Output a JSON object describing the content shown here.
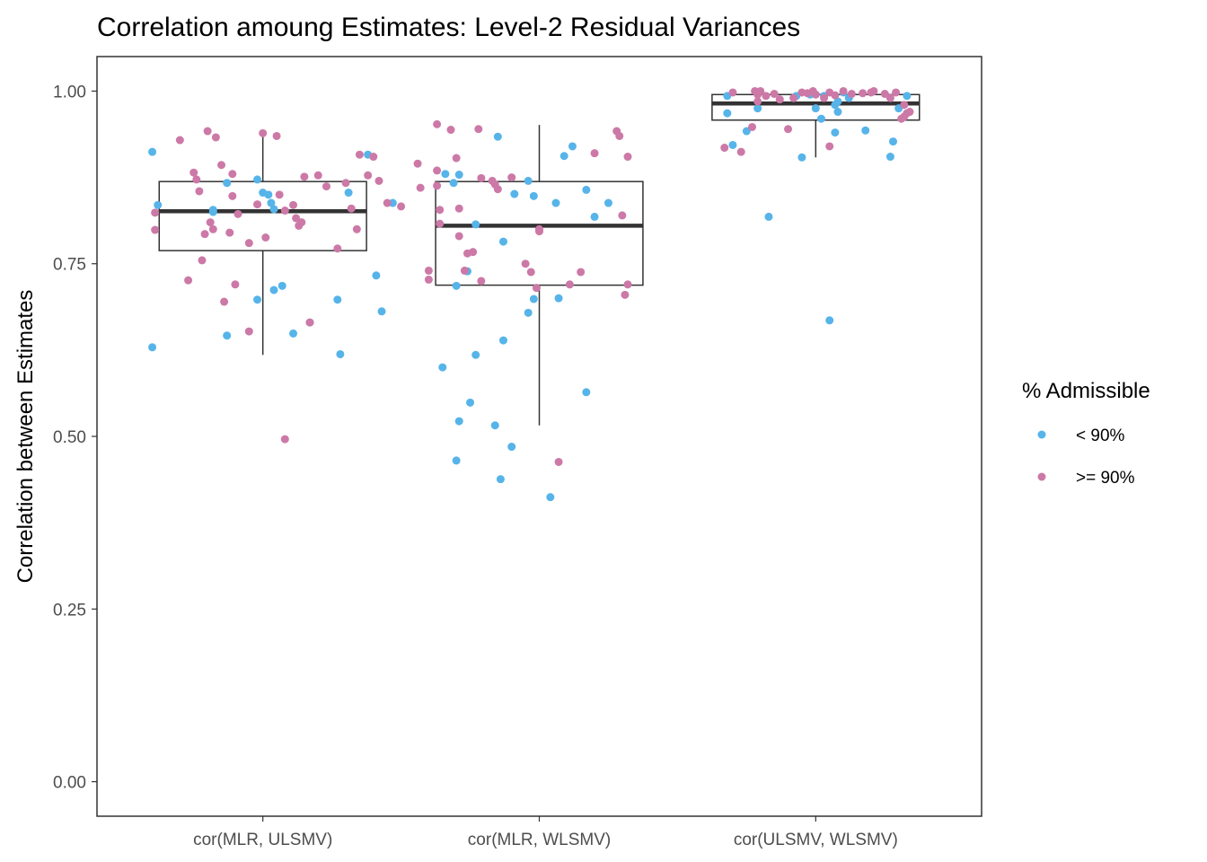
{
  "chart_data": {
    "type": "boxplot-jitter",
    "title": "Correlation amoung Estimates: Level-2 Residual Variances",
    "xlabel": "",
    "ylabel": "Correlation between Estimates",
    "ylim": [
      -0.05,
      1.05
    ],
    "yticks": [
      0.0,
      0.25,
      0.5,
      0.75,
      1.0
    ],
    "ytick_labels": [
      "0.00",
      "0.25",
      "0.50",
      "0.75",
      "1.00"
    ],
    "categories": [
      "cor(MLR, ULSMV)",
      "cor(MLR, WLSMV)",
      "cor(ULSMV, WLSMV)"
    ],
    "grid": false,
    "legend": {
      "title": "% Admissible",
      "placement": "right",
      "entries": [
        {
          "label": "< 90%",
          "color": "#56b4e9"
        },
        {
          "label": ">= 90%",
          "color": "#cc79a7"
        }
      ]
    },
    "boxes": [
      {
        "category": "cor(MLR, ULSMV)",
        "whisker_low": 0.618,
        "q1": 0.769,
        "median": 0.826,
        "q3": 0.869,
        "whisker_high": 0.94
      },
      {
        "category": "cor(MLR, WLSMV)",
        "whisker_low": 0.516,
        "q1": 0.719,
        "median": 0.805,
        "q3": 0.869,
        "whisker_high": 0.951
      },
      {
        "category": "cor(ULSMV, WLSMV)",
        "whisker_low": 0.904,
        "q1": 0.958,
        "median": 0.982,
        "q3": 0.995,
        "whisker_high": 1.0
      }
    ],
    "series": [
      {
        "name": "< 90%",
        "color": "#56b4e9",
        "points": [
          {
            "x": 0.6,
            "y": 0.912
          },
          {
            "x": 0.62,
            "y": 0.835
          },
          {
            "x": 0.6,
            "y": 0.629
          },
          {
            "x": 0.82,
            "y": 0.828
          },
          {
            "x": 0.82,
            "y": 0.825
          },
          {
            "x": 0.87,
            "y": 0.867
          },
          {
            "x": 0.87,
            "y": 0.646
          },
          {
            "x": 0.98,
            "y": 0.872
          },
          {
            "x": 1.0,
            "y": 0.853
          },
          {
            "x": 1.02,
            "y": 0.85
          },
          {
            "x": 1.03,
            "y": 0.838
          },
          {
            "x": 1.04,
            "y": 0.829
          },
          {
            "x": 1.04,
            "y": 0.712
          },
          {
            "x": 1.07,
            "y": 0.718
          },
          {
            "x": 0.98,
            "y": 0.698
          },
          {
            "x": 1.11,
            "y": 0.649
          },
          {
            "x": 1.17,
            "y": 0.665
          },
          {
            "x": 1.27,
            "y": 0.698
          },
          {
            "x": 1.28,
            "y": 0.619
          },
          {
            "x": 1.31,
            "y": 0.853
          },
          {
            "x": 1.38,
            "y": 0.908
          },
          {
            "x": 1.41,
            "y": 0.733
          },
          {
            "x": 1.43,
            "y": 0.681
          },
          {
            "x": 1.47,
            "y": 0.838
          },
          {
            "x": 1.66,
            "y": 0.88
          },
          {
            "x": 1.71,
            "y": 0.879
          },
          {
            "x": 1.69,
            "y": 0.867
          },
          {
            "x": 1.7,
            "y": 0.718
          },
          {
            "x": 1.77,
            "y": 0.807
          },
          {
            "x": 1.74,
            "y": 0.739
          },
          {
            "x": 1.65,
            "y": 0.6
          },
          {
            "x": 1.77,
            "y": 0.618
          },
          {
            "x": 1.71,
            "y": 0.522
          },
          {
            "x": 1.75,
            "y": 0.549
          },
          {
            "x": 1.7,
            "y": 0.465
          },
          {
            "x": 1.84,
            "y": 0.516
          },
          {
            "x": 1.86,
            "y": 0.438
          },
          {
            "x": 1.87,
            "y": 0.782
          },
          {
            "x": 1.87,
            "y": 0.639
          },
          {
            "x": 1.9,
            "y": 0.485
          },
          {
            "x": 1.91,
            "y": 0.851
          },
          {
            "x": 1.85,
            "y": 0.934
          },
          {
            "x": 1.96,
            "y": 0.87
          },
          {
            "x": 1.96,
            "y": 0.679
          },
          {
            "x": 1.98,
            "y": 0.848
          },
          {
            "x": 1.98,
            "y": 0.699
          },
          {
            "x": 2.04,
            "y": 0.412
          },
          {
            "x": 2.06,
            "y": 0.838
          },
          {
            "x": 2.07,
            "y": 0.7
          },
          {
            "x": 2.09,
            "y": 0.906
          },
          {
            "x": 2.12,
            "y": 0.92
          },
          {
            "x": 2.17,
            "y": 0.857
          },
          {
            "x": 2.17,
            "y": 0.564
          },
          {
            "x": 2.2,
            "y": 0.818
          },
          {
            "x": 2.25,
            "y": 0.838
          },
          {
            "x": 2.68,
            "y": 0.993
          },
          {
            "x": 2.68,
            "y": 0.968
          },
          {
            "x": 2.7,
            "y": 0.922
          },
          {
            "x": 2.75,
            "y": 0.942
          },
          {
            "x": 2.79,
            "y": 0.975
          },
          {
            "x": 2.83,
            "y": 0.818
          },
          {
            "x": 2.92,
            "y": 0.99
          },
          {
            "x": 2.95,
            "y": 0.904
          },
          {
            "x": 2.93,
            "y": 0.993
          },
          {
            "x": 2.98,
            "y": 0.995
          },
          {
            "x": 3.0,
            "y": 0.975
          },
          {
            "x": 3.02,
            "y": 0.96
          },
          {
            "x": 3.03,
            "y": 0.993
          },
          {
            "x": 3.05,
            "y": 0.668
          },
          {
            "x": 3.07,
            "y": 0.98
          },
          {
            "x": 3.07,
            "y": 0.94
          },
          {
            "x": 3.08,
            "y": 0.97
          },
          {
            "x": 3.08,
            "y": 0.985
          },
          {
            "x": 3.12,
            "y": 0.99
          },
          {
            "x": 3.1,
            "y": 0.998
          },
          {
            "x": 3.18,
            "y": 0.943
          },
          {
            "x": 3.27,
            "y": 0.905
          },
          {
            "x": 3.28,
            "y": 0.927
          },
          {
            "x": 3.3,
            "y": 0.975
          },
          {
            "x": 3.33,
            "y": 0.993
          }
        ]
      },
      {
        "name": ">= 90%",
        "color": "#cc79a7",
        "points": [
          {
            "x": 0.61,
            "y": 0.824
          },
          {
            "x": 0.61,
            "y": 0.799
          },
          {
            "x": 0.7,
            "y": 0.929
          },
          {
            "x": 0.73,
            "y": 0.726
          },
          {
            "x": 0.76,
            "y": 0.872
          },
          {
            "x": 0.75,
            "y": 0.882
          },
          {
            "x": 0.77,
            "y": 0.855
          },
          {
            "x": 0.78,
            "y": 0.755
          },
          {
            "x": 0.79,
            "y": 0.793
          },
          {
            "x": 0.8,
            "y": 0.942
          },
          {
            "x": 0.81,
            "y": 0.81
          },
          {
            "x": 0.82,
            "y": 0.8
          },
          {
            "x": 0.83,
            "y": 0.933
          },
          {
            "x": 0.85,
            "y": 0.893
          },
          {
            "x": 0.86,
            "y": 0.695
          },
          {
            "x": 0.88,
            "y": 0.795
          },
          {
            "x": 0.89,
            "y": 0.88
          },
          {
            "x": 0.89,
            "y": 0.848
          },
          {
            "x": 0.9,
            "y": 0.72
          },
          {
            "x": 0.91,
            "y": 0.822
          },
          {
            "x": 0.95,
            "y": 0.78
          },
          {
            "x": 0.95,
            "y": 0.652
          },
          {
            "x": 0.98,
            "y": 0.836
          },
          {
            "x": 1.0,
            "y": 0.939
          },
          {
            "x": 1.01,
            "y": 0.788
          },
          {
            "x": 1.05,
            "y": 0.935
          },
          {
            "x": 1.06,
            "y": 0.85
          },
          {
            "x": 1.08,
            "y": 0.827
          },
          {
            "x": 1.11,
            "y": 0.835
          },
          {
            "x": 1.12,
            "y": 0.816
          },
          {
            "x": 1.13,
            "y": 0.805
          },
          {
            "x": 1.14,
            "y": 0.81
          },
          {
            "x": 1.15,
            "y": 0.876
          },
          {
            "x": 1.17,
            "y": 0.665
          },
          {
            "x": 1.2,
            "y": 0.878
          },
          {
            "x": 1.23,
            "y": 0.862
          },
          {
            "x": 1.08,
            "y": 0.496
          },
          {
            "x": 1.27,
            "y": 0.772
          },
          {
            "x": 1.3,
            "y": 0.867
          },
          {
            "x": 1.32,
            "y": 0.83
          },
          {
            "x": 1.34,
            "y": 0.8
          },
          {
            "x": 1.35,
            "y": 0.908
          },
          {
            "x": 1.38,
            "y": 0.878
          },
          {
            "x": 1.4,
            "y": 0.905
          },
          {
            "x": 1.42,
            "y": 0.87
          },
          {
            "x": 1.45,
            "y": 0.838
          },
          {
            "x": 1.5,
            "y": 0.833
          },
          {
            "x": 1.56,
            "y": 0.895
          },
          {
            "x": 1.57,
            "y": 0.86
          },
          {
            "x": 1.6,
            "y": 0.74
          },
          {
            "x": 1.6,
            "y": 0.727
          },
          {
            "x": 1.63,
            "y": 0.952
          },
          {
            "x": 1.63,
            "y": 0.885
          },
          {
            "x": 1.63,
            "y": 0.863
          },
          {
            "x": 1.64,
            "y": 0.828
          },
          {
            "x": 1.64,
            "y": 0.808
          },
          {
            "x": 1.68,
            "y": 0.944
          },
          {
            "x": 1.7,
            "y": 0.903
          },
          {
            "x": 1.71,
            "y": 0.83
          },
          {
            "x": 1.71,
            "y": 0.79
          },
          {
            "x": 1.73,
            "y": 0.74
          },
          {
            "x": 1.74,
            "y": 0.765
          },
          {
            "x": 1.76,
            "y": 0.767
          },
          {
            "x": 1.78,
            "y": 0.945
          },
          {
            "x": 1.79,
            "y": 0.725
          },
          {
            "x": 1.79,
            "y": 0.874
          },
          {
            "x": 1.83,
            "y": 0.87
          },
          {
            "x": 1.84,
            "y": 0.865
          },
          {
            "x": 1.85,
            "y": 0.858
          },
          {
            "x": 1.9,
            "y": 0.875
          },
          {
            "x": 1.95,
            "y": 0.75
          },
          {
            "x": 1.97,
            "y": 0.738
          },
          {
            "x": 1.99,
            "y": 0.715
          },
          {
            "x": 2.0,
            "y": 0.8
          },
          {
            "x": 2.0,
            "y": 0.797
          },
          {
            "x": 2.07,
            "y": 0.463
          },
          {
            "x": 2.11,
            "y": 0.72
          },
          {
            "x": 2.15,
            "y": 0.738
          },
          {
            "x": 2.2,
            "y": 0.91
          },
          {
            "x": 2.28,
            "y": 0.942
          },
          {
            "x": 2.29,
            "y": 0.935
          },
          {
            "x": 2.3,
            "y": 0.82
          },
          {
            "x": 2.32,
            "y": 0.905
          },
          {
            "x": 2.32,
            "y": 0.72
          },
          {
            "x": 2.31,
            "y": 0.705
          },
          {
            "x": 2.67,
            "y": 0.918
          },
          {
            "x": 2.7,
            "y": 0.998
          },
          {
            "x": 2.73,
            "y": 0.912
          },
          {
            "x": 2.77,
            "y": 0.948
          },
          {
            "x": 2.78,
            "y": 1.0
          },
          {
            "x": 2.79,
            "y": 0.995
          },
          {
            "x": 2.79,
            "y": 0.985
          },
          {
            "x": 2.8,
            "y": 1.0
          },
          {
            "x": 2.82,
            "y": 0.993
          },
          {
            "x": 2.85,
            "y": 0.996
          },
          {
            "x": 2.87,
            "y": 0.988
          },
          {
            "x": 2.9,
            "y": 0.945
          },
          {
            "x": 2.92,
            "y": 0.99
          },
          {
            "x": 2.95,
            "y": 0.998
          },
          {
            "x": 2.97,
            "y": 0.997
          },
          {
            "x": 2.99,
            "y": 1.0
          },
          {
            "x": 3.0,
            "y": 0.995
          },
          {
            "x": 3.03,
            "y": 0.99
          },
          {
            "x": 3.05,
            "y": 0.998
          },
          {
            "x": 3.07,
            "y": 0.994
          },
          {
            "x": 3.05,
            "y": 0.92
          },
          {
            "x": 3.1,
            "y": 1.0
          },
          {
            "x": 3.13,
            "y": 0.996
          },
          {
            "x": 3.17,
            "y": 0.997
          },
          {
            "x": 3.2,
            "y": 0.998
          },
          {
            "x": 3.21,
            "y": 1.0
          },
          {
            "x": 3.25,
            "y": 0.996
          },
          {
            "x": 3.27,
            "y": 0.99
          },
          {
            "x": 3.29,
            "y": 0.998
          },
          {
            "x": 3.31,
            "y": 0.96
          },
          {
            "x": 3.32,
            "y": 0.963
          },
          {
            "x": 3.33,
            "y": 0.968
          },
          {
            "x": 3.34,
            "y": 0.97
          },
          {
            "x": 3.32,
            "y": 0.98
          }
        ]
      }
    ]
  }
}
